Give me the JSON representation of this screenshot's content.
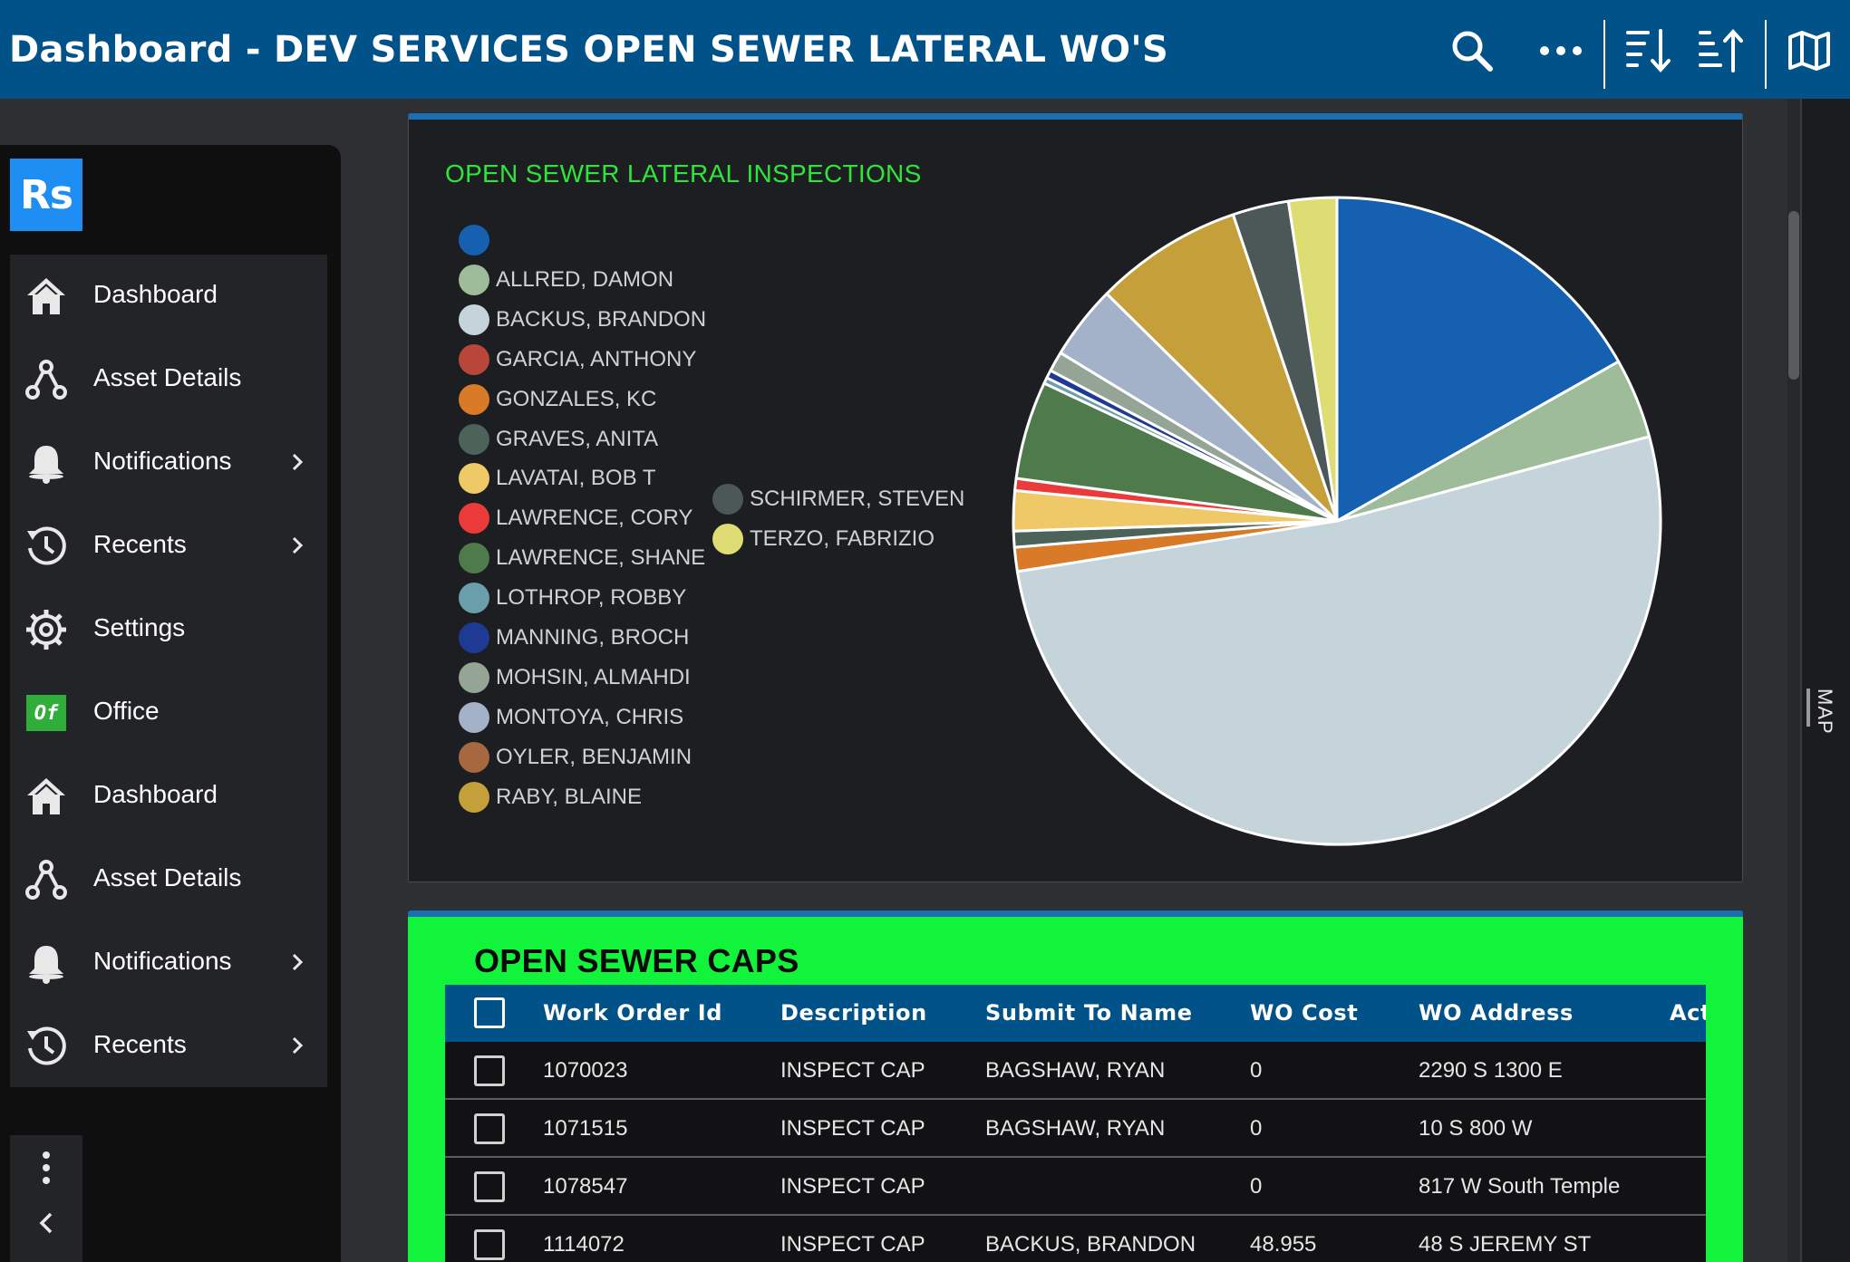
{
  "header": {
    "title": "Dashboard - DEV SERVICES OPEN SEWER LATERAL WO'S",
    "icons": [
      "search-icon",
      "more-icon",
      "sort-descending-icon",
      "sort-ascending-icon",
      "map-icon"
    ]
  },
  "sidebar": {
    "logo": "Rs",
    "items": [
      {
        "label": "Dashboard",
        "icon": "home-icon",
        "chevron": false
      },
      {
        "label": "Asset Details",
        "icon": "asset-icon",
        "chevron": false
      },
      {
        "label": "Notifications",
        "icon": "bell-icon",
        "chevron": true
      },
      {
        "label": "Recents",
        "icon": "history-icon",
        "chevron": true
      },
      {
        "label": "Settings",
        "icon": "gear-icon",
        "chevron": false
      },
      {
        "label": "Office",
        "icon": "office-badge-icon",
        "badge": "Of",
        "chevron": false
      },
      {
        "label": "Dashboard",
        "icon": "home-icon",
        "chevron": false
      },
      {
        "label": "Asset Details",
        "icon": "asset-icon",
        "chevron": false
      },
      {
        "label": "Notifications",
        "icon": "bell-icon",
        "chevron": true
      },
      {
        "label": "Recents",
        "icon": "history-icon",
        "chevron": true
      }
    ]
  },
  "map_tab": {
    "label": "MAP"
  },
  "chart_data": {
    "type": "pie",
    "title": "OPEN SEWER LATERAL INSPECTIONS",
    "legend_position": "left",
    "legend": [
      {
        "name": "",
        "color": "#1560b0"
      },
      {
        "name": "ALLRED, DAMON",
        "color": "#9ebc9a"
      },
      {
        "name": "BACKUS, BRANDON",
        "color": "#c5d3da"
      },
      {
        "name": "GARCIA, ANTHONY",
        "color": "#b8473a"
      },
      {
        "name": "GONZALES, KC",
        "color": "#d97a28"
      },
      {
        "name": "GRAVES, ANITA",
        "color": "#4d6259"
      },
      {
        "name": "LAVATAI, BOB T",
        "color": "#efc968"
      },
      {
        "name": "LAWRENCE, CORY",
        "color": "#ea3a3a"
      },
      {
        "name": "LAWRENCE, SHANE",
        "color": "#4f7a4c"
      },
      {
        "name": "LOTHROP, ROBBY",
        "color": "#6a9eab"
      },
      {
        "name": "MANNING, BROCH",
        "color": "#1f3a92"
      },
      {
        "name": "MOHSIN, ALMAHDI",
        "color": "#94a595"
      },
      {
        "name": "MONTOYA, CHRIS",
        "color": "#a3b2c9"
      },
      {
        "name": "OYLER, BENJAMIN",
        "color": "#a6693f"
      },
      {
        "name": "RABY, BLAINE",
        "color": "#c5a03a"
      },
      {
        "name": "SCHIRMER, STEVEN",
        "color": "#4c5757"
      },
      {
        "name": "TERZO, FABRIZIO",
        "color": "#dedd73"
      }
    ],
    "slices": [
      {
        "name": "",
        "value": 16.8,
        "color": "#1560b0"
      },
      {
        "name": "ALLRED, DAMON",
        "value": 4.0,
        "color": "#9ebc9a"
      },
      {
        "name": "BACKUS, BRANDON",
        "value": 51.7,
        "color": "#c5d3da"
      },
      {
        "name": "GONZALES, KC",
        "value": 1.2,
        "color": "#d97a28"
      },
      {
        "name": "GRAVES, ANITA",
        "value": 0.8,
        "color": "#4d6259"
      },
      {
        "name": "LAVATAI, BOB T",
        "value": 2.0,
        "color": "#efc968"
      },
      {
        "name": "LAWRENCE, CORY",
        "value": 0.6,
        "color": "#ea3a3a"
      },
      {
        "name": "LAWRENCE, SHANE",
        "value": 4.9,
        "color": "#4f7a4c"
      },
      {
        "name": "LOTHROP, ROBBY",
        "value": 0.3,
        "color": "#6a9eab"
      },
      {
        "name": "MANNING, BROCH",
        "value": 0.4,
        "color": "#1f3a92"
      },
      {
        "name": "MOHSIN, ALMAHDI",
        "value": 1.0,
        "color": "#94a595"
      },
      {
        "name": "MONTOYA, CHRIS",
        "value": 3.7,
        "color": "#a3b2c9"
      },
      {
        "name": "RABY, BLAINE",
        "value": 7.4,
        "color": "#c5a03a"
      },
      {
        "name": "SCHIRMER, STEVEN",
        "value": 2.8,
        "color": "#4c5757"
      },
      {
        "name": "TERZO, FABRIZIO",
        "value": 2.4,
        "color": "#dedd73"
      }
    ]
  },
  "table": {
    "title": "OPEN SEWER CAPS",
    "columns": [
      "Work Order Id",
      "Description",
      "Submit To Name",
      "WO Cost",
      "WO Address",
      "Act"
    ],
    "rows": [
      [
        "1070023",
        "INSPECT CAP",
        "BAGSHAW, RYAN",
        "0",
        "2290 S 1300 E"
      ],
      [
        "1071515",
        "INSPECT CAP",
        "BAGSHAW, RYAN",
        "0",
        "10 S 800 W"
      ],
      [
        "1078547",
        "INSPECT CAP",
        "",
        "0",
        "817 W South Temple"
      ],
      [
        "1114072",
        "INSPECT CAP",
        "BACKUS, BRANDON",
        "48.955",
        "48 S JEREMY ST"
      ]
    ]
  }
}
